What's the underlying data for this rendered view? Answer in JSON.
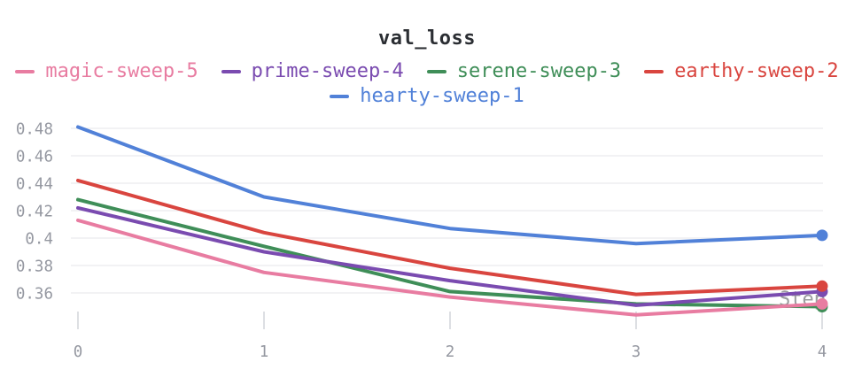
{
  "chart_data": {
    "type": "line",
    "title": "val_loss",
    "xlabel": "Step",
    "ylabel": "",
    "x": [
      0,
      1,
      2,
      3,
      4
    ],
    "x_tick_labels": [
      "0",
      "1",
      "2",
      "3",
      "4"
    ],
    "y_tick_labels": [
      "0.48",
      "0.46",
      "0.44",
      "0.42",
      "0.4",
      "0.38",
      "0.36"
    ],
    "ylim": [
      0.333,
      0.49
    ],
    "grid": "horizontal",
    "legend_position": "top",
    "end_point_markers": true,
    "series": [
      {
        "name": "magic-sweep-5",
        "color": "#E87CA1",
        "values": [
          0.413,
          0.375,
          0.357,
          0.344,
          0.352
        ]
      },
      {
        "name": "prime-sweep-4",
        "color": "#7A4BB0",
        "values": [
          0.422,
          0.39,
          0.369,
          0.351,
          0.361
        ]
      },
      {
        "name": "serene-sweep-3",
        "color": "#3F8E58",
        "values": [
          0.428,
          0.394,
          0.361,
          0.352,
          0.35
        ]
      },
      {
        "name": "earthy-sweep-2",
        "color": "#D9453F",
        "values": [
          0.442,
          0.404,
          0.378,
          0.359,
          0.365
        ]
      },
      {
        "name": "hearty-sweep-1",
        "color": "#5181D8",
        "values": [
          0.481,
          0.43,
          0.407,
          0.396,
          0.402
        ]
      }
    ],
    "draw_order": [
      "hearty-sweep-1",
      "serene-sweep-3",
      "prime-sweep-4",
      "magic-sweep-5",
      "earthy-sweep-2"
    ]
  },
  "styles": {
    "axis_text_color": "#9598A1",
    "grid_color": "#EDEEF0",
    "tick_color": "#DDDFE3",
    "title_color": "#2B2E33",
    "xlabel_color": "#9A9C9E",
    "background": "#FFFFFF"
  }
}
